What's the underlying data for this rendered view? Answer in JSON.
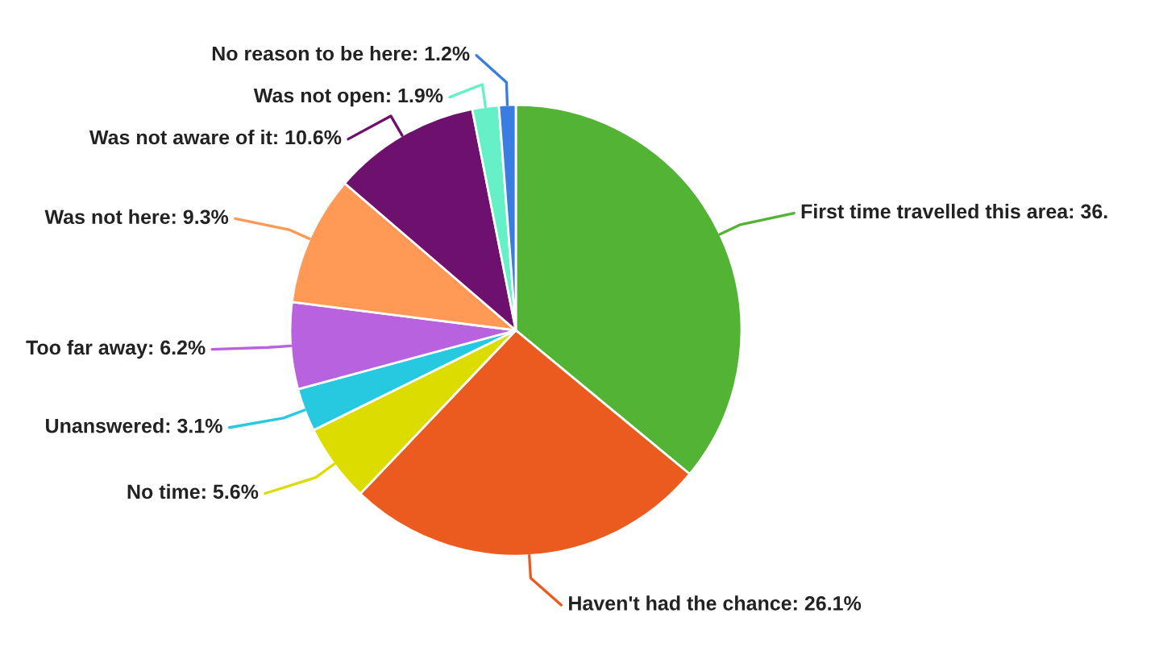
{
  "chart_data": {
    "type": "pie",
    "categories": [
      "First time travelled this area",
      "Haven't had the chance",
      "No time",
      "Unanswered",
      "Too far away",
      "Was not here",
      "Was not aware of it",
      "Was not open",
      "No reason to be here"
    ],
    "values": [
      36.0,
      26.1,
      5.6,
      3.1,
      6.2,
      9.3,
      10.6,
      1.9,
      1.2
    ],
    "colors": [
      "#52b335",
      "#eb5a1e",
      "#dcdc00",
      "#26c9e0",
      "#b862e0",
      "#ff9955",
      "#6e116e",
      "#66f0c8",
      "#3a7de0"
    ],
    "value_labels": [
      "36.",
      "26.1%",
      "5.6%",
      "3.1%",
      "6.2%",
      "9.3%",
      "10.6%",
      "1.9%",
      "1.2%"
    ]
  }
}
